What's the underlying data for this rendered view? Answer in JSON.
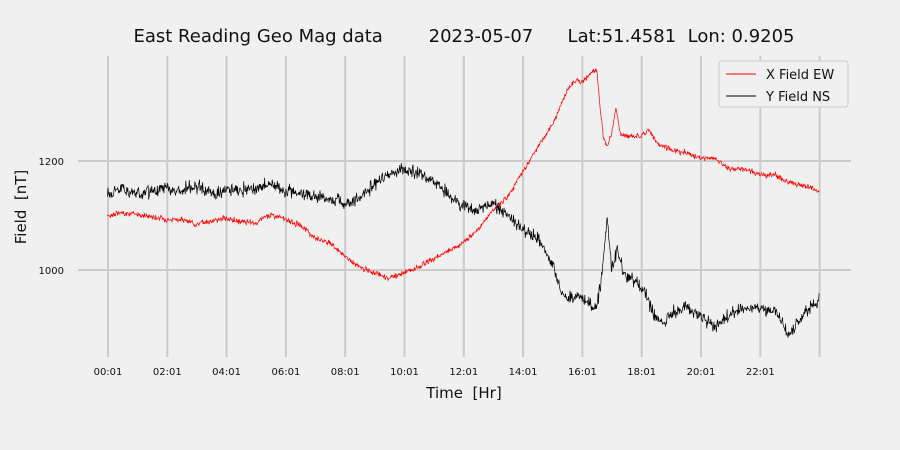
{
  "chart_data": {
    "type": "line",
    "title": "East Reading Geo Mag data        2023-05-07      Lat:51.4581  Lon: 0.9205",
    "xlabel": "Time  [Hr]",
    "ylabel": "Field  [nT]",
    "x_ticks": [
      "00:01",
      "02:01",
      "04:01",
      "06:01",
      "08:01",
      "10:01",
      "12:01",
      "14:01",
      "16:01",
      "18:01",
      "20:01",
      "22:01"
    ],
    "y_ticks": [
      1000,
      1200
    ],
    "xlim": [
      0,
      24
    ],
    "ylim": [
      840,
      1395
    ],
    "grid": true,
    "legend_position": "top-right",
    "series": [
      {
        "name": "X Field EW",
        "color": "#ff0000",
        "x": [
          0.0,
          0.5,
          1.0,
          1.5,
          2.0,
          2.5,
          3.0,
          3.5,
          4.0,
          4.5,
          5.0,
          5.3,
          5.5,
          6.0,
          6.5,
          7.0,
          7.5,
          8.0,
          8.5,
          9.0,
          9.5,
          10.0,
          10.5,
          11.0,
          11.5,
          12.0,
          12.5,
          13.0,
          13.5,
          14.0,
          14.5,
          15.0,
          15.5,
          15.75,
          16.0,
          16.25,
          16.5,
          16.7,
          16.85,
          17.0,
          17.15,
          17.3,
          17.5,
          18.0,
          18.25,
          18.5,
          19.0,
          19.5,
          20.0,
          20.5,
          21.0,
          21.5,
          22.0,
          22.5,
          23.0,
          23.5,
          24.0
        ],
        "y": [
          1100,
          1105,
          1102,
          1098,
          1093,
          1092,
          1085,
          1090,
          1095,
          1088,
          1085,
          1098,
          1102,
          1093,
          1082,
          1060,
          1050,
          1025,
          1005,
          995,
          985,
          995,
          1005,
          1020,
          1035,
          1050,
          1075,
          1110,
          1135,
          1180,
          1225,
          1265,
          1330,
          1348,
          1345,
          1358,
          1368,
          1250,
          1225,
          1250,
          1300,
          1250,
          1245,
          1245,
          1258,
          1235,
          1220,
          1215,
          1205,
          1205,
          1185,
          1185,
          1175,
          1175,
          1160,
          1155,
          1145
        ]
      },
      {
        "name": "Y Field NS",
        "color": "#000000",
        "x": [
          0.0,
          0.5,
          1.0,
          1.5,
          2.0,
          2.5,
          3.0,
          3.5,
          4.0,
          4.5,
          5.0,
          5.5,
          6.0,
          6.5,
          7.0,
          7.5,
          8.0,
          8.5,
          9.0,
          9.5,
          10.0,
          10.5,
          11.0,
          11.5,
          12.0,
          12.5,
          13.0,
          13.5,
          14.0,
          14.5,
          15.0,
          15.3,
          15.5,
          16.0,
          16.3,
          16.5,
          16.7,
          16.85,
          17.0,
          17.2,
          17.4,
          17.7,
          18.0,
          18.3,
          18.5,
          18.8,
          19.0,
          19.5,
          20.0,
          20.5,
          21.0,
          21.5,
          22.0,
          22.5,
          23.0,
          23.5,
          24.0
        ],
        "y": [
          1140,
          1150,
          1140,
          1145,
          1150,
          1145,
          1155,
          1140,
          1145,
          1150,
          1150,
          1160,
          1145,
          1140,
          1135,
          1130,
          1125,
          1130,
          1160,
          1175,
          1185,
          1180,
          1160,
          1140,
          1115,
          1110,
          1120,
          1100,
          1075,
          1060,
          1010,
          960,
          950,
          950,
          935,
          930,
          1000,
          1100,
          1000,
          1040,
          990,
          985,
          970,
          935,
          910,
          900,
          925,
          930,
          915,
          895,
          920,
          930,
          930,
          925,
          880,
          920,
          945
        ]
      }
    ]
  }
}
